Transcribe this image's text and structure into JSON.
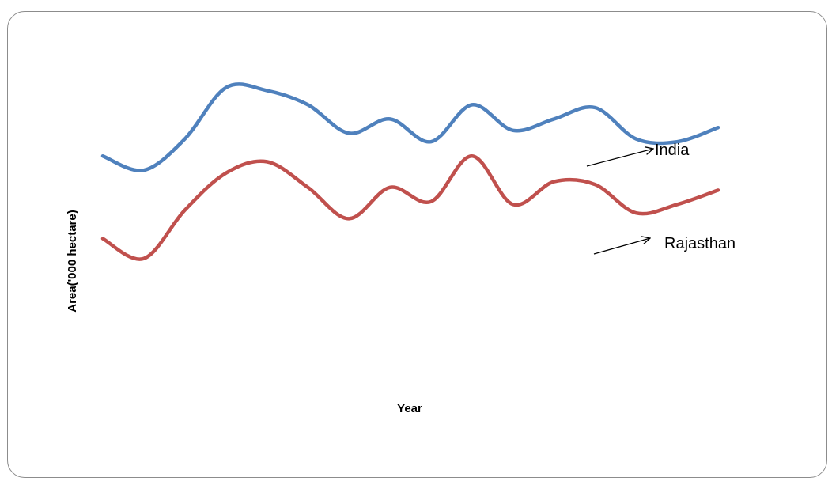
{
  "chart_data": {
    "type": "line",
    "title": "",
    "xlabel": "Year",
    "ylabel": "Area('000 hectare)",
    "x": [
      1,
      2,
      3,
      4,
      5,
      6,
      7,
      8,
      9,
      10,
      11,
      12,
      13,
      14,
      15,
      16
    ],
    "ylim": [
      0,
      100
    ],
    "grid": false,
    "legend": "none",
    "series": [
      {
        "name": "India",
        "color": "#4F81BD",
        "values": [
          73,
          68,
          79,
          97,
          96,
          91,
          81,
          86,
          78,
          91,
          82,
          86,
          90,
          79,
          78,
          83
        ]
      },
      {
        "name": "Rajasthan",
        "color": "#C0504D",
        "values": [
          44,
          37,
          54,
          67,
          71,
          62,
          51,
          62,
          57,
          73,
          56,
          64,
          63,
          53,
          56,
          61
        ]
      }
    ]
  }
}
